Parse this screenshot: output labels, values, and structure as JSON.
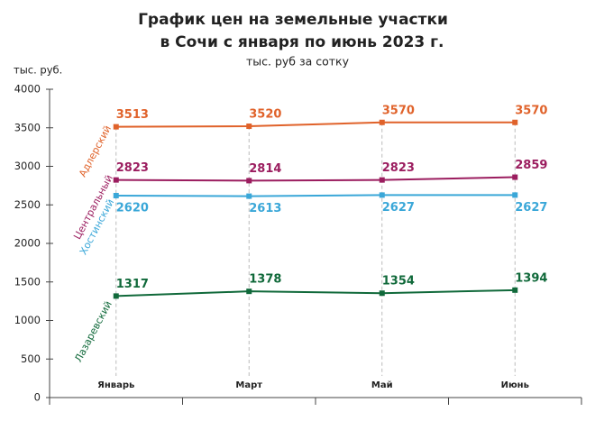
{
  "chart_data": {
    "type": "line",
    "title": [
      "График цен на земельные участки",
      "в Сочи с января по июнь 2023 г."
    ],
    "subtitle": "тыс. руб за сотку",
    "y_label": "тыс. руб.",
    "categories": [
      "Январь",
      "Март",
      "Май",
      "Июнь"
    ],
    "ylim": [
      0,
      4000
    ],
    "yticks": [
      0,
      500,
      1000,
      1500,
      2000,
      2500,
      3000,
      3500,
      4000
    ],
    "grid": false,
    "series": [
      {
        "name": "Адлерский",
        "color": "#e0622a",
        "values": [
          3513,
          3520,
          3570,
          3570
        ]
      },
      {
        "name": "Центральный",
        "color": "#9b1d5f",
        "values": [
          2823,
          2814,
          2823,
          2859
        ]
      },
      {
        "name": "Хостинский",
        "color": "#3aa7d8",
        "values": [
          2620,
          2613,
          2627,
          2627
        ]
      },
      {
        "name": "Лазаревский",
        "color": "#10693a",
        "values": [
          1317,
          1378,
          1354,
          1394
        ]
      }
    ]
  }
}
